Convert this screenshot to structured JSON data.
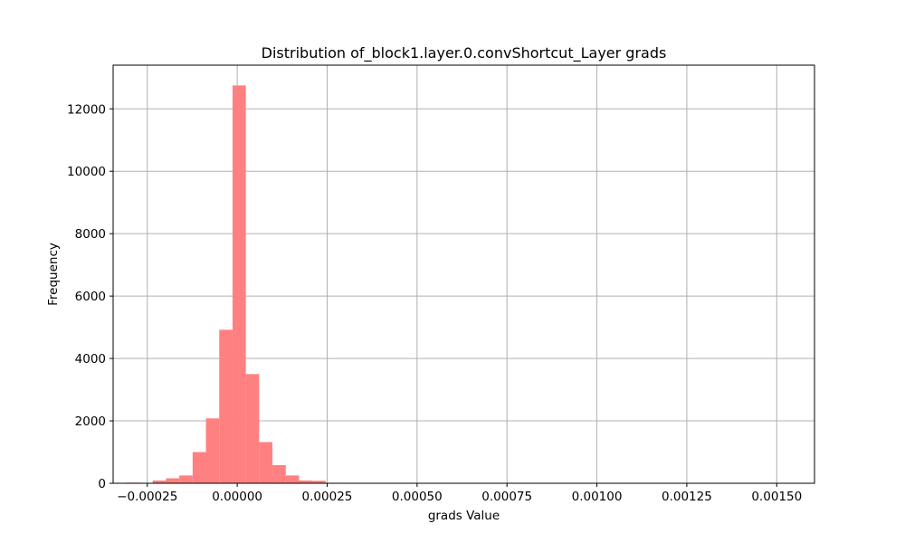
{
  "chart_data": {
    "type": "bar",
    "title": "Distribution of_block1.layer.0.convShortcut_Layer grads",
    "xlabel": "grads Value",
    "ylabel": "Frequency",
    "xlim": [
      -0.000345,
      0.001605
    ],
    "ylim": [
      0,
      13400
    ],
    "grid": true,
    "bar_color": "#ff8080",
    "grid_color": "#b0b0b0",
    "x_ticks": [
      {
        "value": -0.00025,
        "label": "−0.00025"
      },
      {
        "value": 0.0,
        "label": "0.00000"
      },
      {
        "value": 0.00025,
        "label": "0.00025"
      },
      {
        "value": 0.0005,
        "label": "0.00050"
      },
      {
        "value": 0.00075,
        "label": "0.00075"
      },
      {
        "value": 0.001,
        "label": "0.00100"
      },
      {
        "value": 0.00125,
        "label": "0.00125"
      },
      {
        "value": 0.0015,
        "label": "0.00150"
      }
    ],
    "y_ticks": [
      {
        "value": 0,
        "label": "0"
      },
      {
        "value": 2000,
        "label": "2000"
      },
      {
        "value": 4000,
        "label": "4000"
      },
      {
        "value": 6000,
        "label": "6000"
      },
      {
        "value": 8000,
        "label": "8000"
      },
      {
        "value": 10000,
        "label": "10000"
      },
      {
        "value": 12000,
        "label": "12000"
      }
    ],
    "bins": [
      {
        "x0": -0.000309,
        "x1": -0.000272,
        "count": 20
      },
      {
        "x0": -0.000272,
        "x1": -0.000235,
        "count": 10
      },
      {
        "x0": -0.000235,
        "x1": -0.000198,
        "count": 90
      },
      {
        "x0": -0.000198,
        "x1": -0.000161,
        "count": 160
      },
      {
        "x0": -0.000161,
        "x1": -0.000124,
        "count": 250
      },
      {
        "x0": -0.000124,
        "x1": -8.7e-05,
        "count": 1000
      },
      {
        "x0": -8.7e-05,
        "x1": -5e-05,
        "count": 2080
      },
      {
        "x0": -5e-05,
        "x1": -1.3e-05,
        "count": 4920
      },
      {
        "x0": -1.3e-05,
        "x1": 2.4e-05,
        "count": 12750
      },
      {
        "x0": 2.4e-05,
        "x1": 6.1e-05,
        "count": 3500
      },
      {
        "x0": 6.1e-05,
        "x1": 9.8e-05,
        "count": 1320
      },
      {
        "x0": 9.8e-05,
        "x1": 0.000135,
        "count": 580
      },
      {
        "x0": 0.000135,
        "x1": 0.000172,
        "count": 250
      },
      {
        "x0": 0.000172,
        "x1": 0.000209,
        "count": 90
      },
      {
        "x0": 0.000209,
        "x1": 0.000246,
        "count": 80
      },
      {
        "x0": 0.000246,
        "x1": 0.000283,
        "count": 15
      },
      {
        "x0": 0.000357,
        "x1": 0.000394,
        "count": 15
      },
      {
        "x0": 0.000505,
        "x1": 0.000542,
        "count": 15
      },
      {
        "x0": 0.000616,
        "x1": 0.000653,
        "count": 15
      }
    ]
  }
}
